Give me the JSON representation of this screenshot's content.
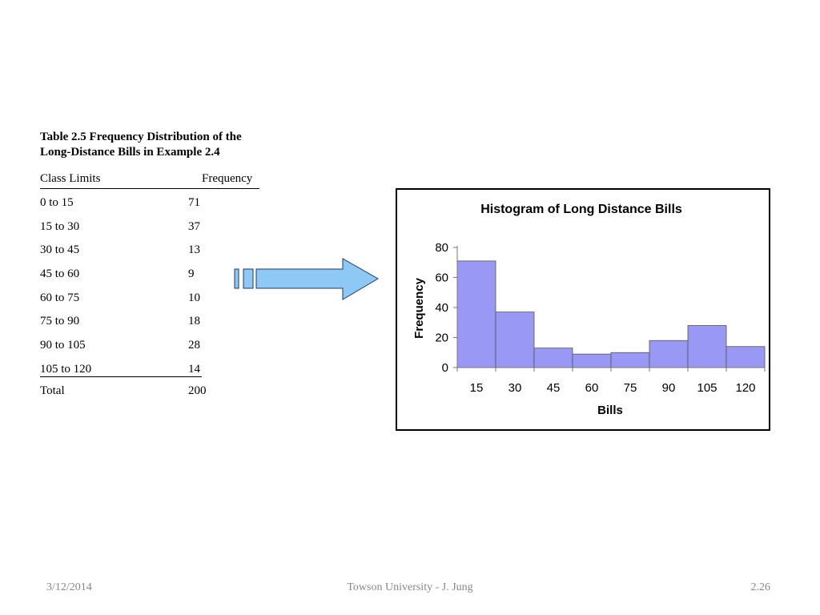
{
  "table": {
    "title_line1": "Table 2.5 Frequency Distribution of the",
    "title_line2": "Long-Distance Bills in Example 2.4",
    "col_class": "Class Limits",
    "col_freq": "Frequency",
    "rows": [
      {
        "range": "0 to 15",
        "freq": "71"
      },
      {
        "range": "15 to 30",
        "freq": "37"
      },
      {
        "range": "30 to 45",
        "freq": "13"
      },
      {
        "range": "45 to 60",
        "freq": "9"
      },
      {
        "range": "60 to 75",
        "freq": "10"
      },
      {
        "range": "75 to 90",
        "freq": "18"
      },
      {
        "range": "90 to 105",
        "freq": "28"
      },
      {
        "range": "105 to 120",
        "freq": "14"
      }
    ],
    "total_label": "Total",
    "total_value": "200"
  },
  "chart_data": {
    "type": "bar",
    "title": "Histogram of Long Distance Bills",
    "xlabel": "Bills",
    "ylabel": "Frequency",
    "categories": [
      "15",
      "30",
      "45",
      "60",
      "75",
      "90",
      "105",
      "120"
    ],
    "values": [
      71,
      37,
      13,
      9,
      10,
      18,
      28,
      14
    ],
    "ylim": [
      0,
      80
    ],
    "yticks": [
      0,
      20,
      40,
      60,
      80
    ],
    "bar_color": "#9999f5",
    "grid": false
  },
  "footer": {
    "date": "3/12/2014",
    "center": "Towson University - J. Jung",
    "page": "2.26"
  }
}
